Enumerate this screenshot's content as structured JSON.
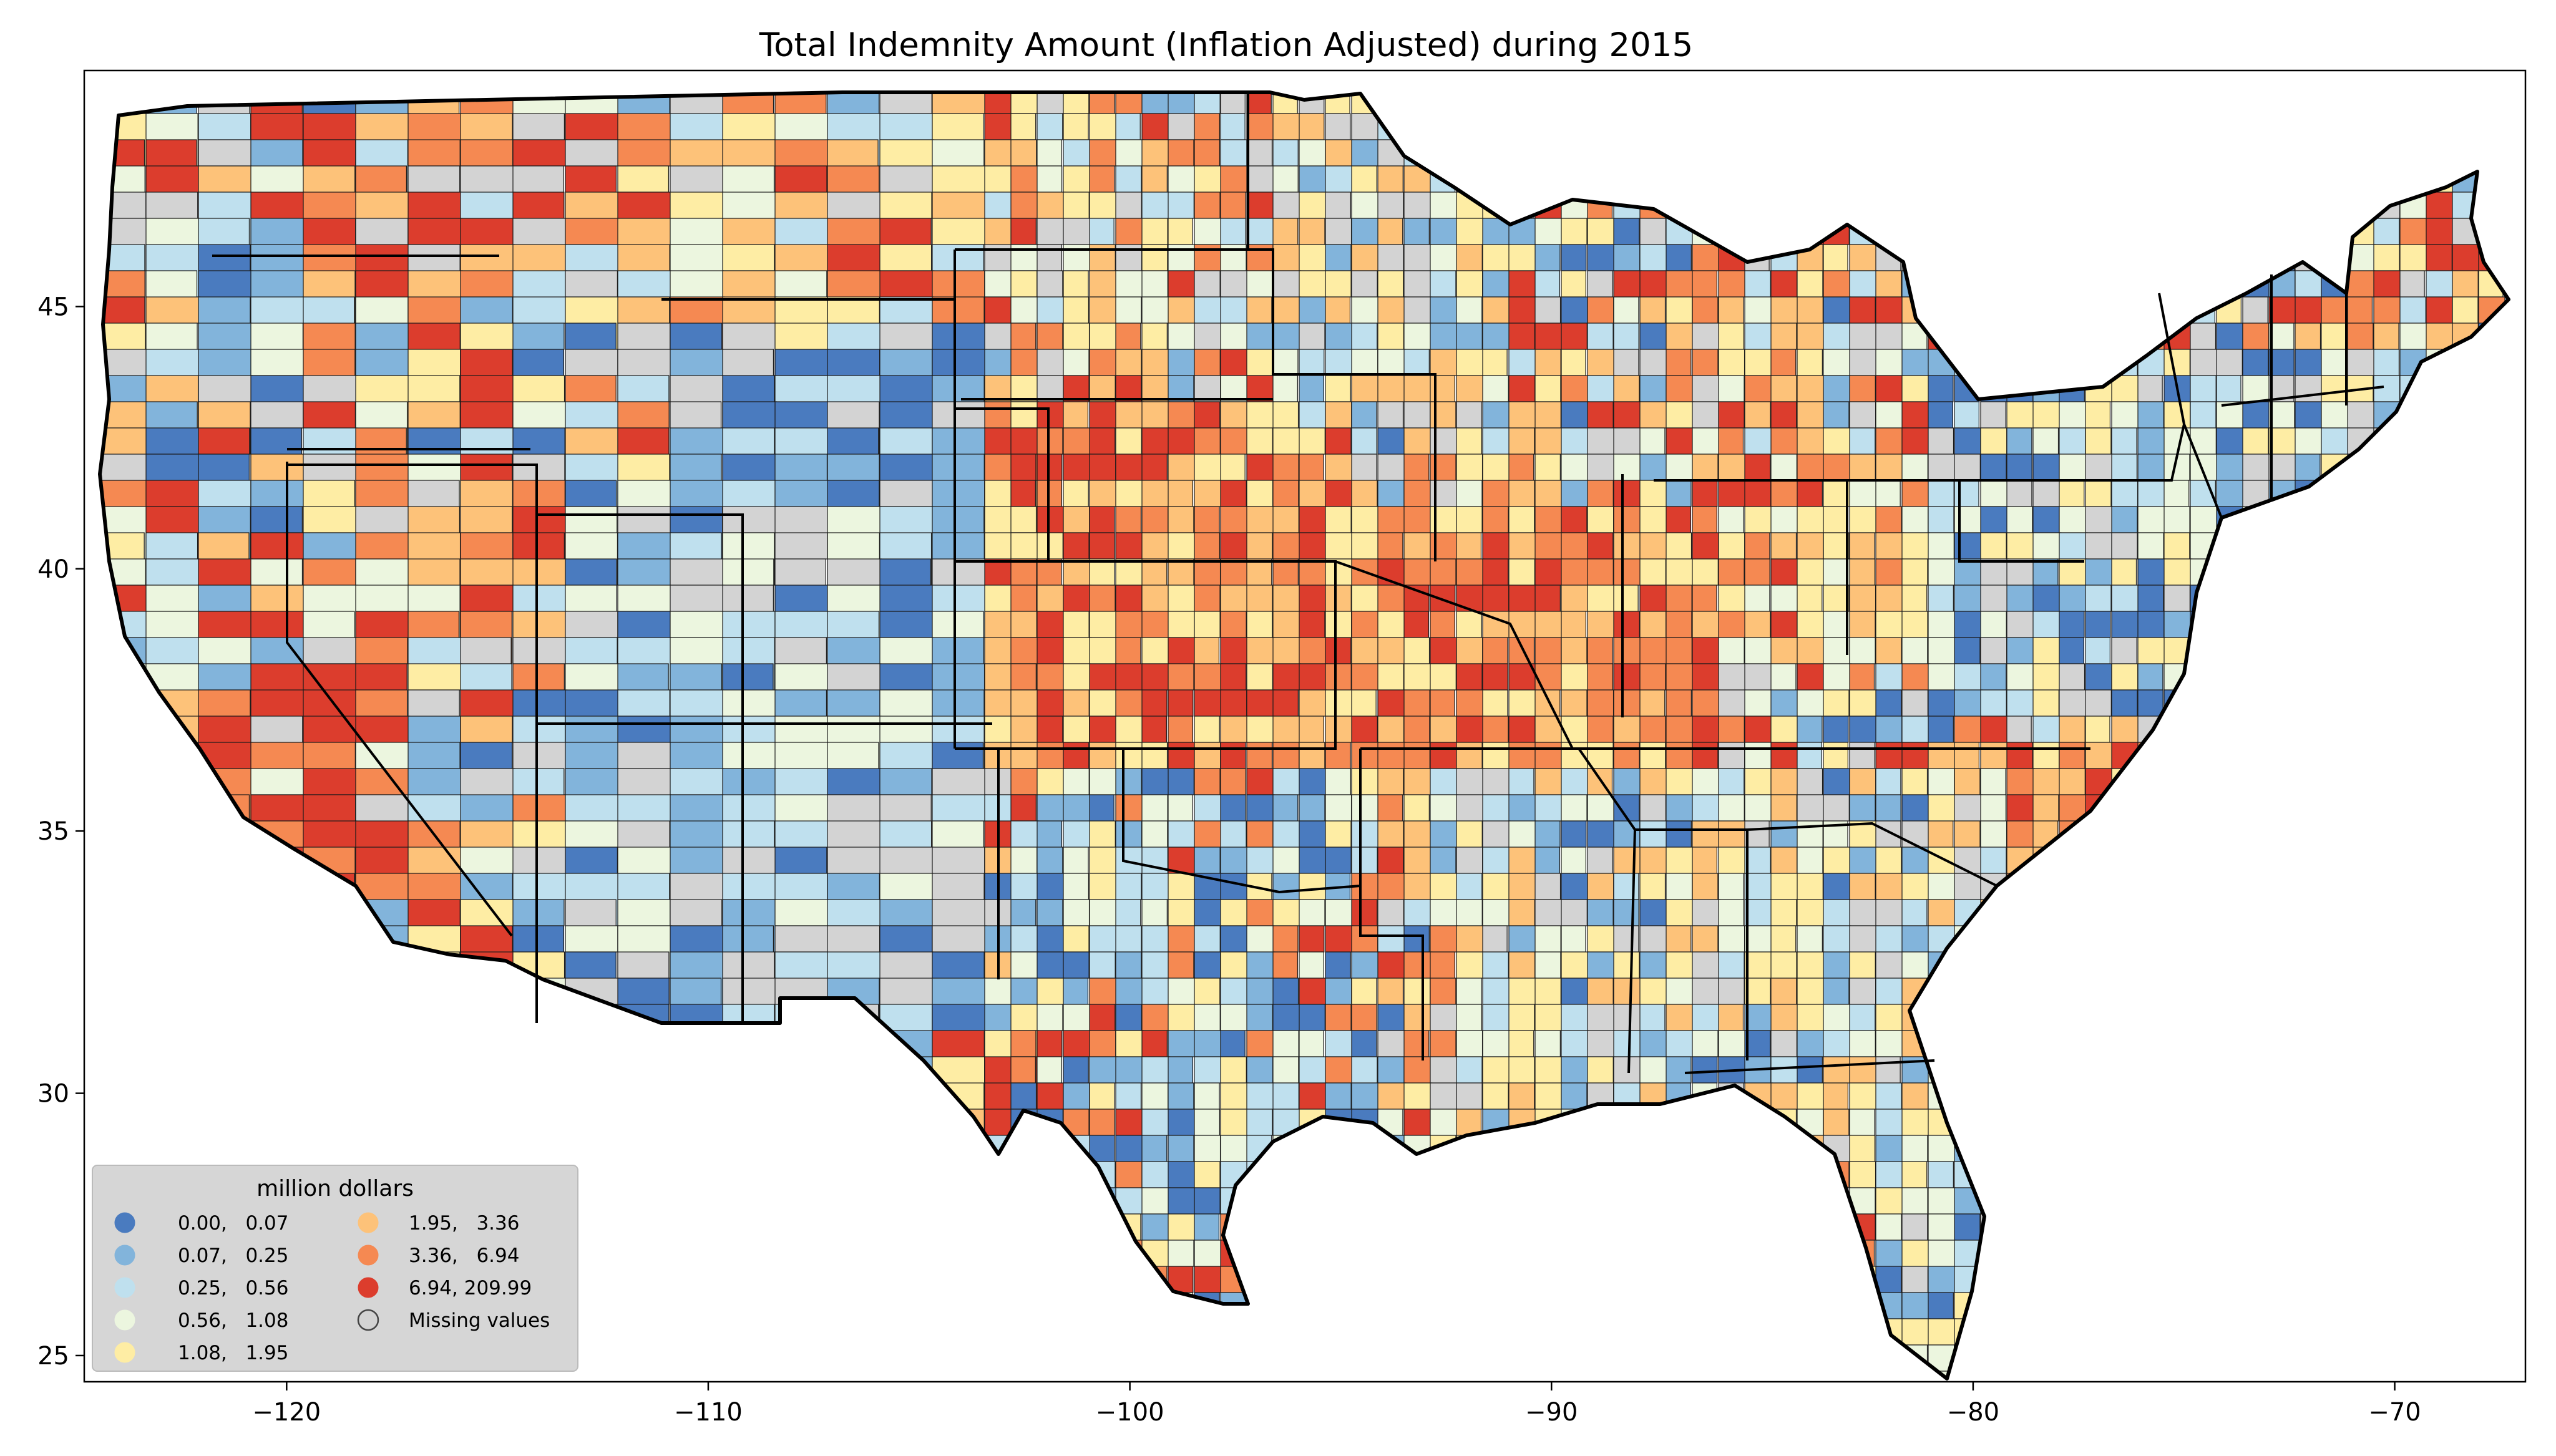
{
  "chart_data": {
    "type": "choropleth-map",
    "title": "Total Indemnity Amount  (Inflation Adjusted) during 2015",
    "x_ticks": [
      "−120",
      "−110",
      "−100",
      "−90",
      "−80",
      "−70"
    ],
    "x_tick_values": [
      -120,
      -110,
      -100,
      -90,
      -80,
      -70
    ],
    "y_ticks": [
      "25",
      "30",
      "35",
      "40",
      "45"
    ],
    "y_tick_values": [
      25,
      30,
      35,
      40,
      45
    ],
    "xlim": [
      -124.8,
      -66.9
    ],
    "ylim": [
      24.5,
      49.5
    ],
    "grid": false,
    "legend": {
      "title": "million dollars",
      "placement": "lower-left",
      "columns": 2,
      "items": [
        {
          "label": "0.00,   0.07",
          "color": "#4a7bbf"
        },
        {
          "label": "0.07,   0.25",
          "color": "#82b4db"
        },
        {
          "label": "0.25,   0.56",
          "color": "#bfe0ee"
        },
        {
          "label": "0.56,   1.08",
          "color": "#ecf6df"
        },
        {
          "label": "1.08,   1.95",
          "color": "#feeda4"
        },
        {
          "label": "1.95,   3.36",
          "color": "#fdc279"
        },
        {
          "label": "3.36,   6.94",
          "color": "#f58952"
        },
        {
          "label": "6.94, 209.99",
          "color": "#dc3d2d"
        },
        {
          "label": "Missing values",
          "color": "#d3d3d3"
        }
      ]
    }
  }
}
